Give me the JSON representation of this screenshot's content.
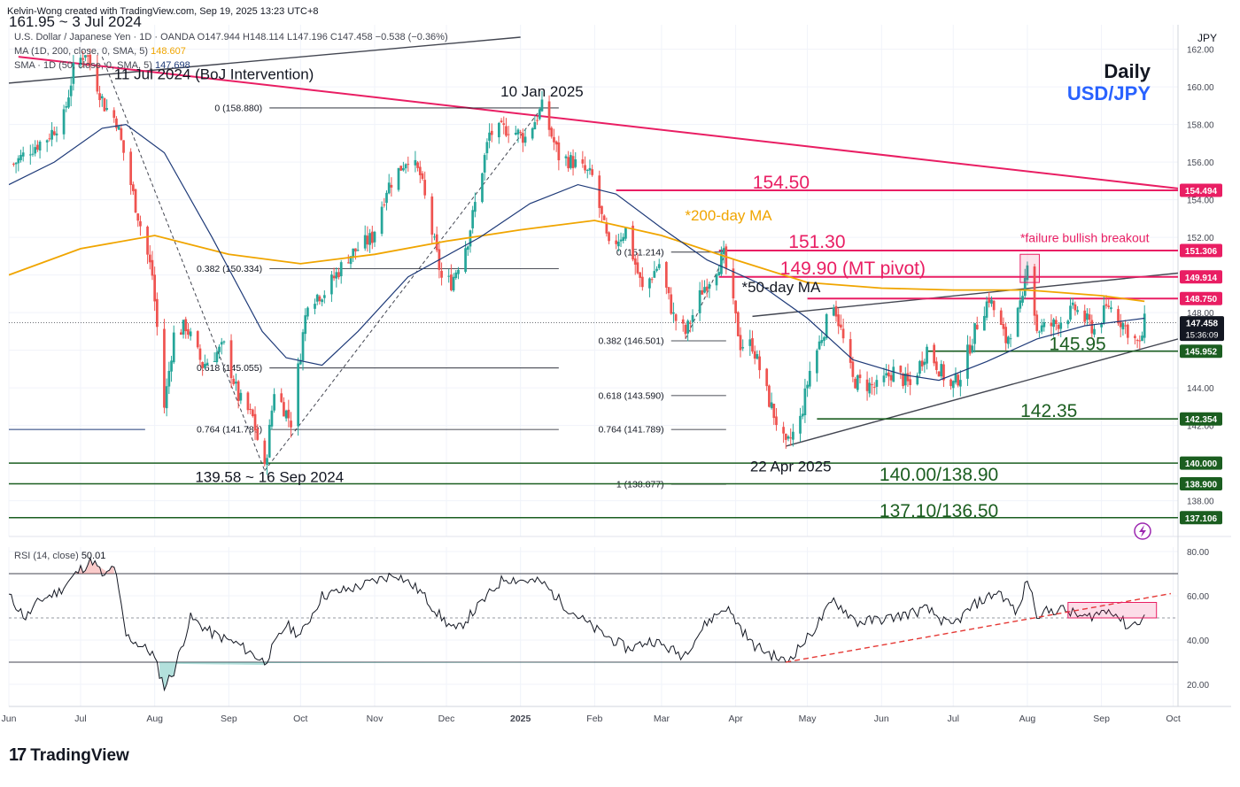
{
  "header": {
    "credit": "Kelvin-Wong created with TradingView.com, Sep 19, 2025 13:23 UTC+8",
    "legend_main": "U.S. Dollar / Japanese Yen · 1D · OANDA  O147.944  H148.114  L147.196  C147.458  −0.538 (−0.36%)",
    "legend_ma200": "MA (1D, 200, close, 0, SMA, 5)",
    "legend_ma200_value": "148.607",
    "legend_sma50": "SMA · 1D (50, close, 0, SMA, 5)",
    "legend_sma50_value": "147.698",
    "rsi_legend": "RSI (14, close)",
    "rsi_value": "50.01"
  },
  "title": {
    "timeframe": "Daily",
    "symbol": "USD/JPY",
    "currency": "JPY"
  },
  "footer": {
    "brand": "TradingView",
    "countdown": "15:36:09"
  },
  "colors": {
    "up": "#26a69a",
    "down": "#ef5350",
    "ma200": "#f0a500",
    "sma50": "#1e3a78",
    "resistance": "#e91e63",
    "support": "#1b5e20",
    "symbol": "#2962ff"
  },
  "chart_data": {
    "type": "candlestick",
    "price_axis": {
      "ylim": [
        136.1,
        163.3
      ],
      "ticks": [
        138,
        140,
        142,
        144,
        146,
        148,
        150,
        152,
        154,
        156,
        158,
        160,
        162
      ]
    },
    "rsi_axis": {
      "ylim": [
        10,
        82
      ],
      "ticks": [
        20,
        40,
        60,
        80
      ],
      "bands": [
        30,
        50,
        70
      ]
    },
    "x_axis": {
      "start": "2024-06-01",
      "end": "2025-10-03",
      "labels": [
        {
          "date": "2024-06-01",
          "text": "Jun"
        },
        {
          "date": "2024-07-01",
          "text": "Jul"
        },
        {
          "date": "2024-08-01",
          "text": "Aug"
        },
        {
          "date": "2024-09-01",
          "text": "Sep"
        },
        {
          "date": "2024-10-01",
          "text": "Oct"
        },
        {
          "date": "2024-11-01",
          "text": "Nov"
        },
        {
          "date": "2024-12-01",
          "text": "Dec"
        },
        {
          "date": "2025-01-01",
          "text": "2025",
          "bold": true
        },
        {
          "date": "2025-02-01",
          "text": "Feb"
        },
        {
          "date": "2025-03-01",
          "text": "Mar"
        },
        {
          "date": "2025-04-01",
          "text": "Apr"
        },
        {
          "date": "2025-05-01",
          "text": "May"
        },
        {
          "date": "2025-06-01",
          "text": "Jun"
        },
        {
          "date": "2025-07-01",
          "text": "Jul"
        },
        {
          "date": "2025-08-01",
          "text": "Aug"
        },
        {
          "date": "2025-09-01",
          "text": "Sep"
        },
        {
          "date": "2025-10-01",
          "text": "Oct"
        }
      ]
    },
    "price_path": [
      [
        "2024-06-03",
        155.9
      ],
      [
        "2024-06-10",
        156.7
      ],
      [
        "2024-06-17",
        157.3
      ],
      [
        "2024-06-24",
        158.4
      ],
      [
        "2024-06-28",
        160.9
      ],
      [
        "2024-07-03",
        161.9
      ],
      [
        "2024-07-11",
        159.0
      ],
      [
        "2024-07-16",
        158.2
      ],
      [
        "2024-07-24",
        153.7
      ],
      [
        "2024-07-31",
        150.0
      ],
      [
        "2024-08-05",
        143.0
      ],
      [
        "2024-08-09",
        146.8
      ],
      [
        "2024-08-14",
        147.3
      ],
      [
        "2024-08-21",
        145.2
      ],
      [
        "2024-08-30",
        146.2
      ],
      [
        "2024-09-05",
        143.5
      ],
      [
        "2024-09-11",
        142.4
      ],
      [
        "2024-09-16",
        139.6
      ],
      [
        "2024-09-20",
        143.9
      ],
      [
        "2024-09-27",
        142.2
      ],
      [
        "2024-10-04",
        148.7
      ],
      [
        "2024-10-11",
        149.1
      ],
      [
        "2024-10-21",
        151.0
      ],
      [
        "2024-10-31",
        152.0
      ],
      [
        "2024-11-06",
        154.6
      ],
      [
        "2024-11-15",
        156.3
      ],
      [
        "2024-11-20",
        155.3
      ],
      [
        "2024-11-29",
        149.8
      ],
      [
        "2024-12-03",
        149.6
      ],
      [
        "2024-12-10",
        151.9
      ],
      [
        "2024-12-19",
        157.5
      ],
      [
        "2024-12-27",
        157.8
      ],
      [
        "2025-01-03",
        157.3
      ],
      [
        "2025-01-10",
        158.9
      ],
      [
        "2025-01-17",
        156.3
      ],
      [
        "2025-01-23",
        156.0
      ],
      [
        "2025-01-31",
        155.2
      ],
      [
        "2025-02-07",
        151.4
      ],
      [
        "2025-02-14",
        152.4
      ],
      [
        "2025-02-21",
        149.2
      ],
      [
        "2025-02-28",
        150.6
      ],
      [
        "2025-03-06",
        147.8
      ],
      [
        "2025-03-11",
        146.9
      ],
      [
        "2025-03-18",
        149.2
      ],
      [
        "2025-03-27",
        151.0
      ],
      [
        "2025-04-03",
        146.3
      ],
      [
        "2025-04-08",
        146.3
      ],
      [
        "2025-04-15",
        143.3
      ],
      [
        "2025-04-22",
        140.8
      ],
      [
        "2025-04-28",
        142.3
      ],
      [
        "2025-05-02",
        144.9
      ],
      [
        "2025-05-12",
        148.6
      ],
      [
        "2025-05-20",
        144.4
      ],
      [
        "2025-05-30",
        144.0
      ],
      [
        "2025-06-06",
        144.9
      ],
      [
        "2025-06-13",
        144.1
      ],
      [
        "2025-06-20",
        146.1
      ],
      [
        "2025-06-30",
        144.0
      ],
      [
        "2025-07-04",
        144.7
      ],
      [
        "2025-07-11",
        147.4
      ],
      [
        "2025-07-16",
        148.8
      ],
      [
        "2025-07-23",
        146.5
      ],
      [
        "2025-07-30",
        148.5
      ],
      [
        "2025-08-01",
        150.9
      ],
      [
        "2025-08-05",
        147.1
      ],
      [
        "2025-08-13",
        147.4
      ],
      [
        "2025-08-21",
        148.2
      ],
      [
        "2025-08-29",
        147.1
      ],
      [
        "2025-09-04",
        148.4
      ],
      [
        "2025-09-10",
        147.4
      ],
      [
        "2025-09-17",
        146.2
      ],
      [
        "2025-09-19",
        147.5
      ]
    ],
    "ma200_path": [
      [
        "2024-06-01",
        150.0
      ],
      [
        "2024-07-01",
        151.4
      ],
      [
        "2024-08-01",
        152.1
      ],
      [
        "2024-09-01",
        151.1
      ],
      [
        "2024-10-01",
        150.6
      ],
      [
        "2024-11-01",
        151.1
      ],
      [
        "2024-12-01",
        151.8
      ],
      [
        "2025-01-01",
        152.4
      ],
      [
        "2025-02-01",
        152.9
      ],
      [
        "2025-03-01",
        152.1
      ],
      [
        "2025-04-01",
        150.8
      ],
      [
        "2025-05-01",
        149.6
      ],
      [
        "2025-06-01",
        149.3
      ],
      [
        "2025-07-01",
        149.2
      ],
      [
        "2025-08-01",
        149.2
      ],
      [
        "2025-09-01",
        148.9
      ],
      [
        "2025-09-19",
        148.6
      ]
    ],
    "sma50_path": [
      [
        "2024-06-01",
        154.8
      ],
      [
        "2024-06-20",
        156.0
      ],
      [
        "2024-07-10",
        157.8
      ],
      [
        "2024-07-20",
        158.0
      ],
      [
        "2024-08-05",
        156.5
      ],
      [
        "2024-08-25",
        152.0
      ],
      [
        "2024-09-15",
        147.0
      ],
      [
        "2024-09-25",
        145.6
      ],
      [
        "2024-10-10",
        145.2
      ],
      [
        "2024-10-25",
        147.0
      ],
      [
        "2024-11-15",
        149.9
      ],
      [
        "2024-12-15",
        152.0
      ],
      [
        "2025-01-05",
        153.8
      ],
      [
        "2025-01-25",
        154.8
      ],
      [
        "2025-02-10",
        154.3
      ],
      [
        "2025-03-01",
        152.5
      ],
      [
        "2025-03-20",
        150.8
      ],
      [
        "2025-04-10",
        149.6
      ],
      [
        "2025-05-01",
        147.7
      ],
      [
        "2025-05-20",
        145.5
      ],
      [
        "2025-06-10",
        144.7
      ],
      [
        "2025-06-25",
        144.4
      ],
      [
        "2025-07-15",
        145.4
      ],
      [
        "2025-08-05",
        146.6
      ],
      [
        "2025-08-25",
        147.3
      ],
      [
        "2025-09-19",
        147.7
      ]
    ],
    "rsi_path": [
      [
        "2024-06-01",
        60
      ],
      [
        "2024-06-08",
        50
      ],
      [
        "2024-06-14",
        58
      ],
      [
        "2024-06-22",
        62
      ],
      [
        "2024-07-01",
        72
      ],
      [
        "2024-07-06",
        76
      ],
      [
        "2024-07-11",
        68
      ],
      [
        "2024-07-15",
        74
      ],
      [
        "2024-07-20",
        42
      ],
      [
        "2024-07-31",
        34
      ],
      [
        "2024-08-05",
        19
      ],
      [
        "2024-08-09",
        26
      ],
      [
        "2024-08-16",
        50
      ],
      [
        "2024-08-25",
        43
      ],
      [
        "2024-09-05",
        38
      ],
      [
        "2024-09-16",
        30
      ],
      [
        "2024-09-25",
        47
      ],
      [
        "2024-10-01",
        42
      ],
      [
        "2024-10-10",
        60
      ],
      [
        "2024-10-25",
        64
      ],
      [
        "2024-11-10",
        70
      ],
      [
        "2024-11-20",
        62
      ],
      [
        "2024-11-29",
        50
      ],
      [
        "2024-12-05",
        44
      ],
      [
        "2024-12-15",
        56
      ],
      [
        "2024-12-25",
        68
      ],
      [
        "2025-01-10",
        66
      ],
      [
        "2025-01-20",
        55
      ],
      [
        "2025-02-01",
        45
      ],
      [
        "2025-02-15",
        36
      ],
      [
        "2025-02-25",
        40
      ],
      [
        "2025-03-10",
        33
      ],
      [
        "2025-03-20",
        48
      ],
      [
        "2025-03-28",
        55
      ],
      [
        "2025-04-08",
        38
      ],
      [
        "2025-04-22",
        30
      ],
      [
        "2025-05-02",
        42
      ],
      [
        "2025-05-12",
        58
      ],
      [
        "2025-05-22",
        48
      ],
      [
        "2025-06-05",
        50
      ],
      [
        "2025-06-20",
        54
      ],
      [
        "2025-06-30",
        46
      ],
      [
        "2025-07-10",
        56
      ],
      [
        "2025-07-20",
        62
      ],
      [
        "2025-07-28",
        52
      ],
      [
        "2025-08-01",
        68
      ],
      [
        "2025-08-05",
        52
      ],
      [
        "2025-08-15",
        54
      ],
      [
        "2025-08-25",
        50
      ],
      [
        "2025-09-05",
        54
      ],
      [
        "2025-09-12",
        46
      ],
      [
        "2025-09-19",
        50
      ]
    ],
    "horizontal_levels": [
      {
        "value": 154.5,
        "label": "154.50",
        "price_tag": "154.494",
        "role": "resistance",
        "from": "2025-02-10"
      },
      {
        "value": 151.3,
        "label": "151.30",
        "price_tag": "151.306",
        "role": "resistance",
        "from": "2025-03-25"
      },
      {
        "value": 149.9,
        "label": "149.90 (MT pivot)",
        "price_tag": "149.914",
        "role": "resistance",
        "from": "2025-03-25"
      },
      {
        "value": 148.75,
        "label": "",
        "price_tag": "148.750",
        "role": "resistance",
        "from": "2025-05-01"
      },
      {
        "value": 145.95,
        "label": "145.95",
        "price_tag": "145.952",
        "role": "support",
        "from": "2025-06-20"
      },
      {
        "value": 142.35,
        "label": "142.35",
        "price_tag": "142.354",
        "role": "support",
        "from": "2025-05-05"
      },
      {
        "value": 140.0,
        "label": "140.00/138.90",
        "price_tag": "140.000",
        "role": "support",
        "from": "2024-06-01"
      },
      {
        "value": 138.9,
        "label": "",
        "price_tag": "138.900",
        "role": "support",
        "from": "2024-06-01"
      },
      {
        "value": 137.1,
        "label": "137.10/136.50",
        "price_tag": "137.106",
        "role": "support",
        "from": "2024-06-01"
      }
    ],
    "last_price": {
      "value": 147.458,
      "tag": "147.458"
    },
    "fib_retracement_1": {
      "from": "2024-09-16",
      "to": "2025-01-10",
      "levels": [
        {
          "ratio": "0",
          "value": 158.88,
          "text": "0 (158.880)"
        },
        {
          "ratio": "0.382",
          "value": 150.334,
          "text": "0.382 (150.334)"
        },
        {
          "ratio": "0.618",
          "value": 145.055,
          "text": "0.618 (145.055)"
        },
        {
          "ratio": "0.764",
          "value": 141.789,
          "text": "0.764 (141.789)"
        }
      ]
    },
    "fib_retracement_2": {
      "from": "2025-03-01",
      "to": "2025-03-31",
      "levels": [
        {
          "ratio": "0",
          "value": 151.214,
          "text": "0 (151.214)"
        },
        {
          "ratio": "0.382",
          "value": 146.501,
          "text": "0.382 (146.501)"
        },
        {
          "ratio": "0.618",
          "value": 143.59,
          "text": "0.618 (143.590)"
        },
        {
          "ratio": "0.764",
          "value": 141.789,
          "text": "0.764 (141.789)"
        },
        {
          "ratio": "1",
          "value": 138.877,
          "text": "1 (138.877)"
        }
      ]
    },
    "annotations": [
      {
        "text": "161.95 ~ 3 Jul 2024",
        "date": "2024-06-01",
        "value": 163.2,
        "anchor": "start"
      },
      {
        "text": "11 Jul 2024 (BoJ Intervention)",
        "date": "2024-07-15",
        "value": 160.4,
        "anchor": "start"
      },
      {
        "text": "10 Jan 2025",
        "date": "2025-01-10",
        "value": 159.5,
        "anchor": "middle"
      },
      {
        "text": "139.58 ~ 16 Sep 2024",
        "date": "2024-09-18",
        "value": 139.0,
        "anchor": "middle"
      },
      {
        "text": "22 Apr 2025",
        "date": "2025-04-24",
        "value": 139.55,
        "anchor": "middle"
      },
      {
        "text": "*200-day MA",
        "date": "2025-03-29",
        "value": 152.9,
        "anchor": "middle"
      },
      {
        "text": "*50-day MA",
        "date": "2025-04-20",
        "value": 149.1,
        "anchor": "middle"
      },
      {
        "text": "*failure bullish breakout",
        "date": "2025-08-25",
        "value": 151.75,
        "anchor": "middle"
      }
    ]
  }
}
